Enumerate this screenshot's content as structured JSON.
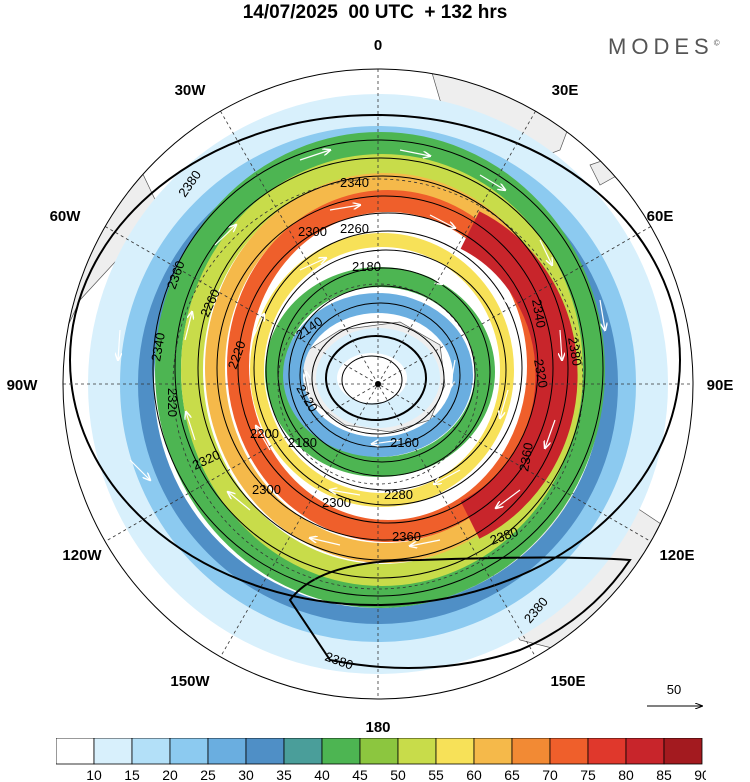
{
  "title": "14/07/2025  00 UTC  + 132 hrs",
  "logo": "MODES",
  "logo_mark": "©",
  "longitude_labels": {
    "lon_0": "0",
    "lon_30e": "30E",
    "lon_60e": "60E",
    "lon_90e": "90E",
    "lon_120e": "120E",
    "lon_150e": "150E",
    "lon_180": "180",
    "lon_150w": "150W",
    "lon_120w": "120W",
    "lon_90w": "90W",
    "lon_60w": "60W",
    "lon_30w": "30W"
  },
  "contour_labels": [
    "2380",
    "2340",
    "2360",
    "2300",
    "2260",
    "2180",
    "2260",
    "2220",
    "2340",
    "2140",
    "2120",
    "2200",
    "2180",
    "2160",
    "2320",
    "2320",
    "2300",
    "2300",
    "2280",
    "2360",
    "2380",
    "2380",
    "2380",
    "2360",
    "2340",
    "2320",
    "2380"
  ],
  "wind_reference": {
    "label": "50"
  },
  "colorbar": {
    "ticks": [
      "10",
      "15",
      "20",
      "25",
      "30",
      "35",
      "40",
      "45",
      "50",
      "55",
      "60",
      "65",
      "70",
      "75",
      "80",
      "85",
      "90"
    ],
    "colors": [
      "#ffffff",
      "#d8f0fc",
      "#b3e0f8",
      "#8ccaf0",
      "#6aaee0",
      "#4f8fc6",
      "#4a9e9a",
      "#4db552",
      "#8cc63f",
      "#c8dc4a",
      "#f7e158",
      "#f5b94a",
      "#f28a34",
      "#ef5f2b",
      "#e0382c",
      "#c8252b",
      "#a31a1f"
    ]
  }
}
